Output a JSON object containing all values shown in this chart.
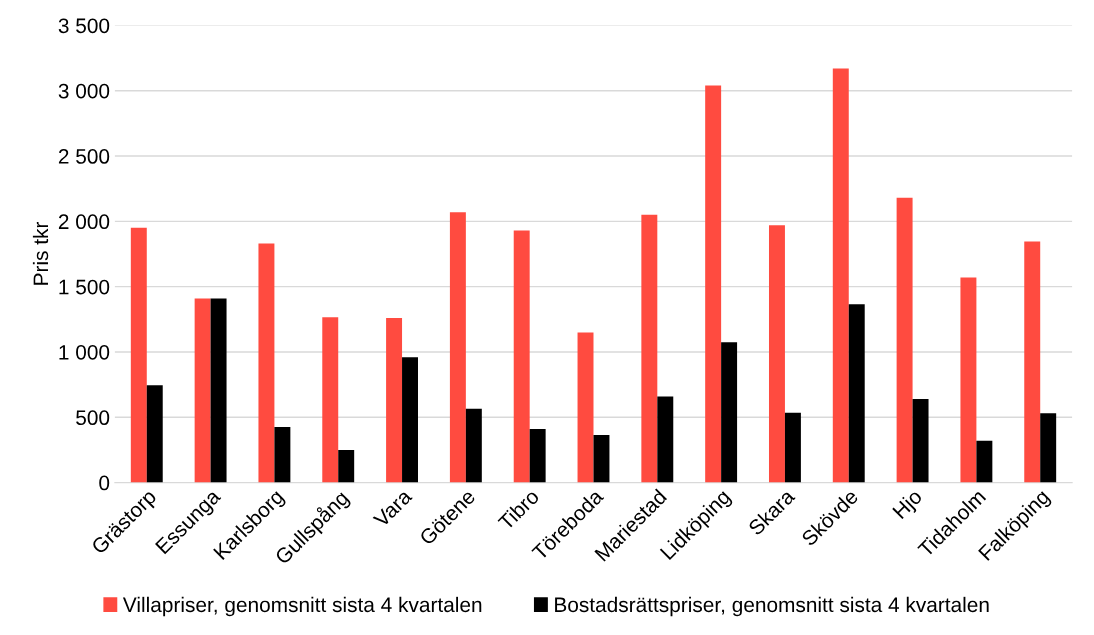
{
  "chart_data": {
    "type": "bar",
    "ylabel": "Pris tkr",
    "categories": [
      "Grästorp",
      "Essunga",
      "Karlsborg",
      "Gullspång",
      "Vara",
      "Götene",
      "Tibro",
      "Töreboda",
      "Mariestad",
      "Lidköping",
      "Skara",
      "Skövde",
      "Hjo",
      "Tidaholm",
      "Falköping"
    ],
    "series": [
      {
        "name": "Villapriser, genomsnitt sista 4 kvartalen",
        "color": "#ff4b40",
        "values": [
          1950,
          1410,
          1830,
          1265,
          1260,
          2070,
          1930,
          1150,
          2050,
          3040,
          1970,
          3170,
          2180,
          1570,
          1845
        ]
      },
      {
        "name": "Bostadsrättspriser, genomsnitt sista 4 kvartalen",
        "color": "#000000",
        "values": [
          745,
          1410,
          425,
          250,
          960,
          565,
          410,
          365,
          660,
          1075,
          535,
          1365,
          640,
          320,
          530
        ]
      }
    ],
    "ylim": [
      0,
      3500
    ],
    "yticks": [
      {
        "value": 0,
        "label": "0"
      },
      {
        "value": 500,
        "label": "500"
      },
      {
        "value": 1000,
        "label": "1 000"
      },
      {
        "value": 1500,
        "label": "1 500"
      },
      {
        "value": 2000,
        "label": "2 000"
      },
      {
        "value": 2500,
        "label": "2 500"
      },
      {
        "value": 3000,
        "label": "3 000"
      },
      {
        "value": 3500,
        "label": "3 500"
      }
    ],
    "grid": "y",
    "legend": "bottom"
  }
}
